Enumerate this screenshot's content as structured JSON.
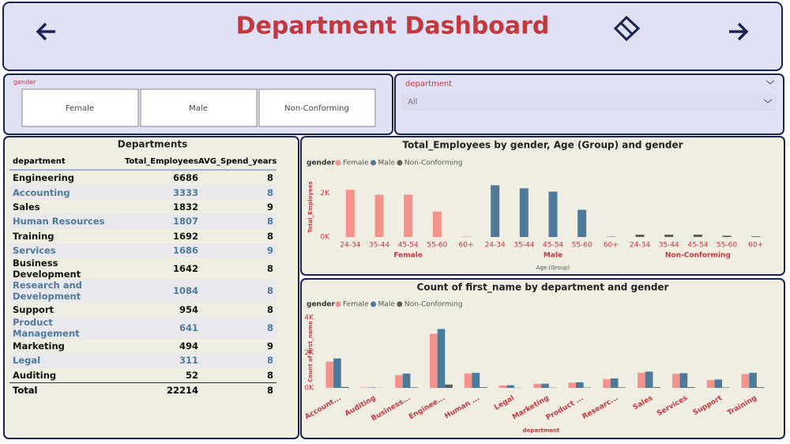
{
  "header": {
    "title": "Department Dashboard"
  },
  "slicers": {
    "gender": {
      "label": "gender",
      "options": [
        "Female",
        "Male",
        "Non-Conforming"
      ]
    },
    "department": {
      "label": "department",
      "value": "All"
    }
  },
  "table": {
    "title": "Departments",
    "columns": [
      "department",
      "Total_Employees",
      "AVG_Spend_years"
    ],
    "rows": [
      [
        "Engineering",
        6686,
        8
      ],
      [
        "Accounting",
        3333,
        8
      ],
      [
        "Sales",
        1832,
        9
      ],
      [
        "Human Resources",
        1807,
        8
      ],
      [
        "Training",
        1692,
        8
      ],
      [
        "Services",
        1686,
        9
      ],
      [
        "Business Development",
        1642,
        8
      ],
      [
        "Research and Development",
        1084,
        8
      ],
      [
        "Support",
        954,
        8
      ],
      [
        "Product Management",
        641,
        8
      ],
      [
        "Marketing",
        494,
        9
      ],
      [
        "Legal",
        311,
        8
      ],
      [
        "Auditing",
        52,
        8
      ]
    ],
    "total": [
      "Total",
      22214,
      8
    ]
  },
  "chart_data": [
    {
      "type": "hierarchical_bar",
      "title": "Total_Employees by gender, Age (Group) and gender",
      "legend_title": "gender",
      "x_label": "Age (Group)",
      "y_label": "Total_Employees",
      "categories": [
        "24-34",
        "35-44",
        "45-54",
        "55-60",
        "60+"
      ],
      "series": [
        {
          "name": "Female",
          "color": "#f4928c",
          "values": [
            2150,
            1930,
            1930,
            1160,
            20
          ]
        },
        {
          "name": "Male",
          "color": "#4e7a99",
          "values": [
            2360,
            2220,
            2070,
            1240,
            20
          ]
        },
        {
          "name": "Non-Conforming",
          "color": "#5a5f55",
          "values": [
            110,
            110,
            110,
            60,
            30
          ]
        }
      ],
      "ylim": [
        0,
        2700
      ],
      "yticks": [
        {
          "value": 0,
          "label": "0K"
        },
        {
          "value": 2000,
          "label": "2K"
        }
      ],
      "grid": false
    },
    {
      "type": "bar",
      "title": "Count of first_name by department and gender",
      "legend_title": "gender",
      "x_label": "department",
      "y_label": "Count of first_name",
      "categories": [
        "Account...",
        "Auditing",
        "Business...",
        "Enginee...",
        "Human ...",
        "Legal",
        "Marketing",
        "Product ...",
        "Researc...",
        "Sales",
        "Services",
        "Support",
        "Training"
      ],
      "series": [
        {
          "name": "Female",
          "color": "#f4928c",
          "values": [
            1500,
            20,
            730,
            3090,
            820,
            140,
            230,
            300,
            500,
            870,
            800,
            440,
            790
          ]
        },
        {
          "name": "Male",
          "color": "#4e7a99",
          "values": [
            1680,
            25,
            820,
            3360,
            860,
            150,
            240,
            320,
            540,
            930,
            840,
            480,
            860
          ]
        },
        {
          "name": "Non-Conforming",
          "color": "#5a5f55",
          "values": [
            50,
            5,
            30,
            190,
            40,
            10,
            15,
            20,
            30,
            40,
            40,
            25,
            40
          ]
        }
      ],
      "ylim": [
        0,
        4100
      ],
      "yticks": [
        {
          "value": 0,
          "label": "0K"
        },
        {
          "value": 2000,
          "label": "2K"
        },
        {
          "value": 4000,
          "label": "4K"
        }
      ],
      "grid": false
    }
  ]
}
